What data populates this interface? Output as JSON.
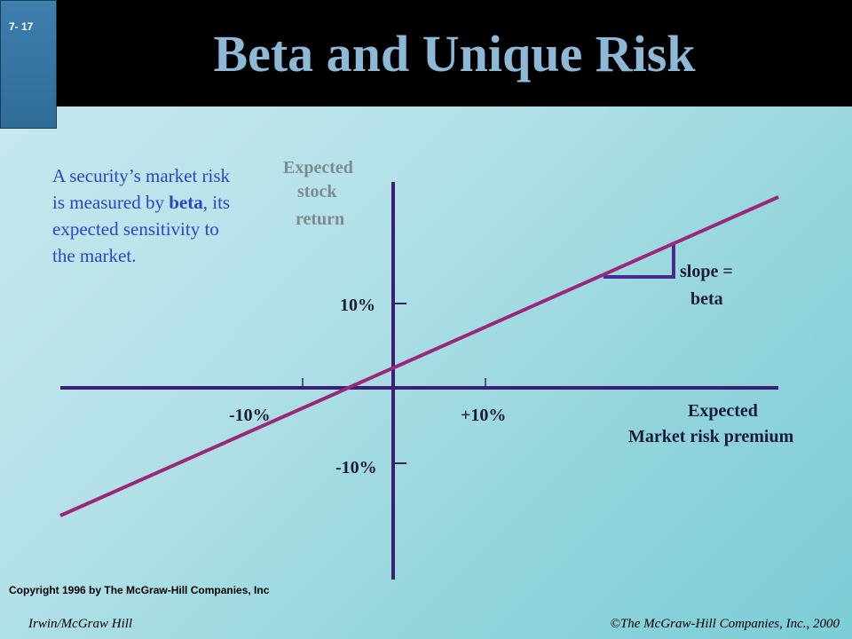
{
  "header": {
    "slide_number": "7- 17",
    "title": "Beta and Unique Risk"
  },
  "description": {
    "part1": "A security’s market risk is measured by ",
    "emphasis": "beta",
    "part2": ", its expected sensitivity to the market."
  },
  "diagram": {
    "y_axis_label": [
      "Expected",
      "stock",
      "return"
    ],
    "x_axis_label": [
      "Expected",
      "Market risk premium"
    ],
    "y_ticks": {
      "pos": "10%",
      "neg": "-10%"
    },
    "x_ticks": {
      "pos": "+10%",
      "neg": "-10%"
    },
    "slope_label": [
      "slope =",
      "beta"
    ],
    "colors": {
      "axes": "#3c1f73",
      "line": "#9a2779",
      "triangle": "#4a2b94"
    }
  },
  "footer": {
    "copyright": "Copyright 1996 by The McGraw-Hill Companies, Inc",
    "left": "Irwin/McGraw Hill",
    "right": "©The McGraw-Hill Companies, Inc., 2000"
  }
}
